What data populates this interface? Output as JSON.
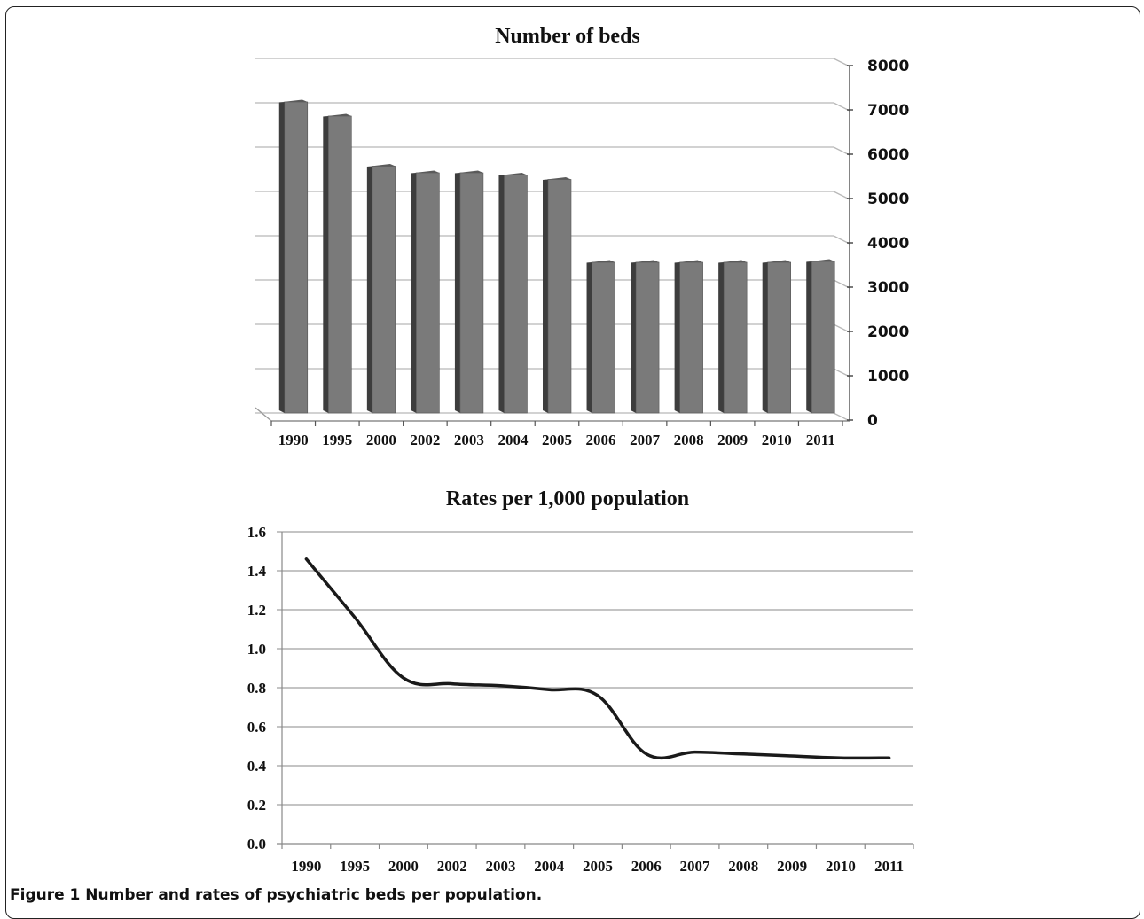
{
  "caption": "Figure 1 Number and rates of psychiatric beds per population.",
  "chart_data": [
    {
      "type": "bar",
      "style": "3d",
      "title": "Number of beds",
      "xlabel": "",
      "ylabel": "",
      "y_axis_side": "right",
      "categories": [
        "1990",
        "1995",
        "2000",
        "2002",
        "2003",
        "2004",
        "2005",
        "2006",
        "2007",
        "2008",
        "2009",
        "2010",
        "2011"
      ],
      "values": [
        7050,
        6730,
        5600,
        5450,
        5450,
        5400,
        5300,
        3430,
        3430,
        3430,
        3430,
        3430,
        3450
      ],
      "ylim": [
        0,
        8000
      ],
      "yticks": [
        "0",
        "1000",
        "2000",
        "3000",
        "4000",
        "5000",
        "6000",
        "7000",
        "8000"
      ],
      "grid": true,
      "bar_color": "#7a7a7a"
    },
    {
      "type": "line",
      "title": "Rates per 1,000 population",
      "xlabel": "",
      "ylabel": "",
      "categories": [
        "1990",
        "1995",
        "2000",
        "2002",
        "2003",
        "2004",
        "2005",
        "2006",
        "2007",
        "2008",
        "2009",
        "2010",
        "2011"
      ],
      "values": [
        1.46,
        1.16,
        0.85,
        0.82,
        0.81,
        0.79,
        0.76,
        0.46,
        0.47,
        0.46,
        0.45,
        0.44,
        0.44
      ],
      "ylim": [
        0,
        1.6
      ],
      "yticks": [
        "0.0",
        "0.2",
        "0.4",
        "0.6",
        "0.8",
        "1.0",
        "1.2",
        "1.4",
        "1.6"
      ],
      "grid": true,
      "line_color": "#1a1a1a"
    }
  ]
}
